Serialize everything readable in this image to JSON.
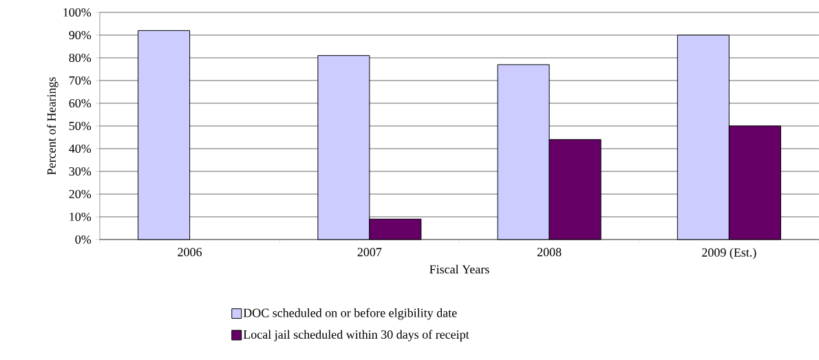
{
  "chart_data": {
    "type": "bar",
    "xlabel": "Fiscal Years",
    "ylabel": "Percent of Hearings",
    "categories": [
      "2006",
      "2007",
      "2008",
      "2009 (Est.)"
    ],
    "series": [
      {
        "name": "DOC scheduled on or before elgibility date",
        "color": "#ccccff",
        "values": [
          92,
          81,
          77,
          90
        ]
      },
      {
        "name": "Local jail scheduled within 30 days of receipt",
        "color": "#660066",
        "values": [
          null,
          9,
          44,
          50
        ]
      }
    ],
    "ylim": [
      0,
      100
    ],
    "yticks": [
      {
        "value": 0,
        "label": "0%"
      },
      {
        "value": 10,
        "label": "10%"
      },
      {
        "value": 20,
        "label": "20%"
      },
      {
        "value": 30,
        "label": "30%"
      },
      {
        "value": 40,
        "label": "40%"
      },
      {
        "value": 50,
        "label": "50%"
      },
      {
        "value": 60,
        "label": "60%"
      },
      {
        "value": 70,
        "label": "70%"
      },
      {
        "value": 80,
        "label": "80%"
      },
      {
        "value": 90,
        "label": "90%"
      },
      {
        "value": 100,
        "label": "100%"
      }
    ],
    "grid": "y",
    "legend": "bottom"
  }
}
